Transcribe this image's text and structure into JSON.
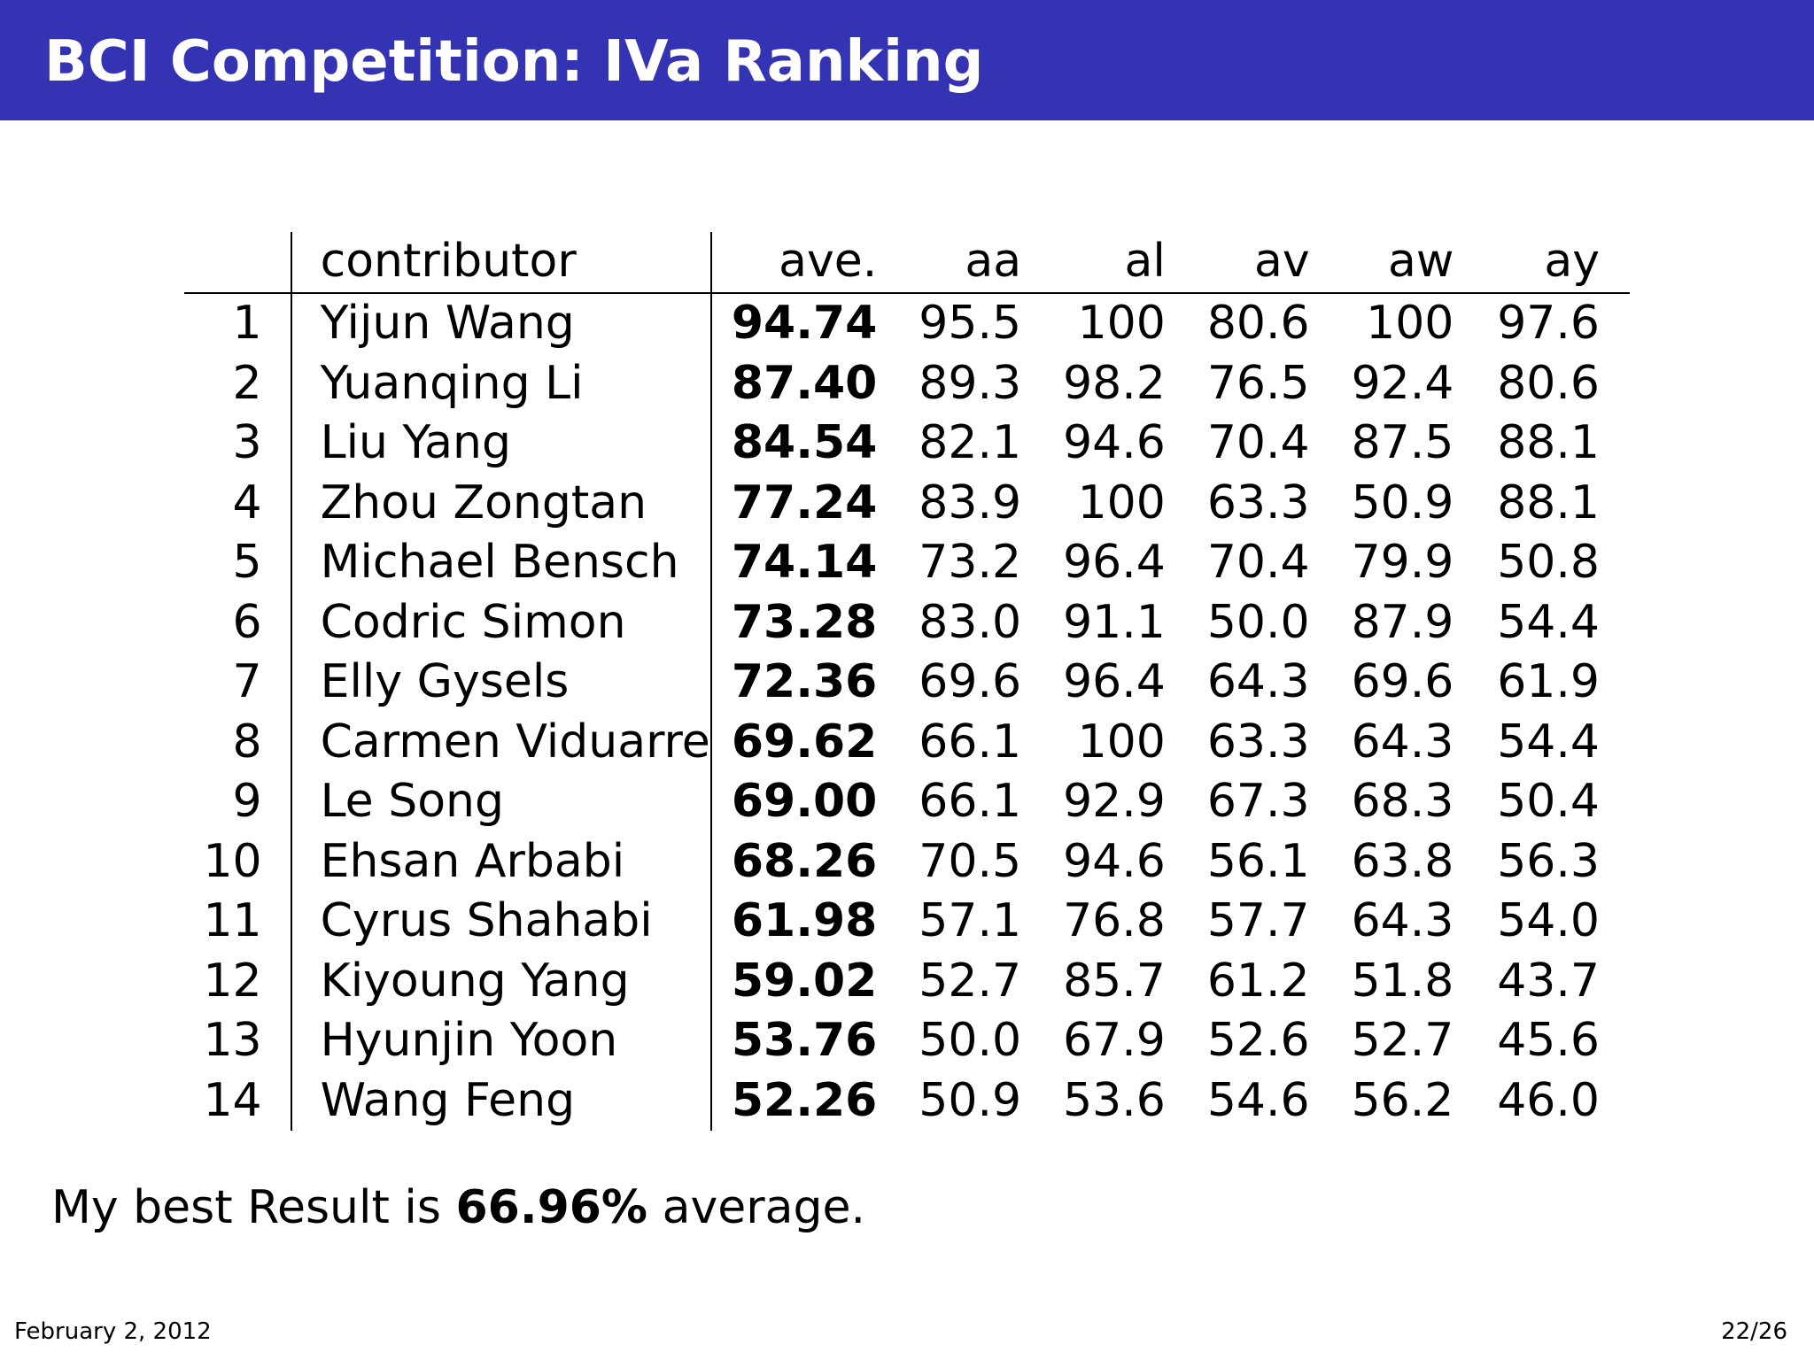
{
  "slide": {
    "title": "BCI Competition: IVa Ranking",
    "summary_prefix": "My best Result is ",
    "summary_value": "66.96%",
    "summary_suffix": " average.",
    "date": "February 2, 2012",
    "page": "22/26"
  },
  "table": {
    "headers": [
      "",
      "contributor",
      "ave.",
      "aa",
      "al",
      "av",
      "aw",
      "ay"
    ],
    "rows": [
      [
        "1",
        "Yijun Wang",
        "94.74",
        "95.5",
        "100",
        "80.6",
        "100",
        "97.6"
      ],
      [
        "2",
        "Yuanqing Li",
        "87.40",
        "89.3",
        "98.2",
        "76.5",
        "92.4",
        "80.6"
      ],
      [
        "3",
        "Liu Yang",
        "84.54",
        "82.1",
        "94.6",
        "70.4",
        "87.5",
        "88.1"
      ],
      [
        "4",
        "Zhou Zongtan",
        "77.24",
        "83.9",
        "100",
        "63.3",
        "50.9",
        "88.1"
      ],
      [
        "5",
        "Michael Bensch",
        "74.14",
        "73.2",
        "96.4",
        "70.4",
        "79.9",
        "50.8"
      ],
      [
        "6",
        "Codric Simon",
        "73.28",
        "83.0",
        "91.1",
        "50.0",
        "87.9",
        "54.4"
      ],
      [
        "7",
        "Elly Gysels",
        "72.36",
        "69.6",
        "96.4",
        "64.3",
        "69.6",
        "61.9"
      ],
      [
        "8",
        "Carmen Viduarre",
        "69.62",
        "66.1",
        "100",
        "63.3",
        "64.3",
        "54.4"
      ],
      [
        "9",
        "Le Song",
        "69.00",
        "66.1",
        "92.9",
        "67.3",
        "68.3",
        "50.4"
      ],
      [
        "10",
        "Ehsan Arbabi",
        "68.26",
        "70.5",
        "94.6",
        "56.1",
        "63.8",
        "56.3"
      ],
      [
        "11",
        "Cyrus Shahabi",
        "61.98",
        "57.1",
        "76.8",
        "57.7",
        "64.3",
        "54.0"
      ],
      [
        "12",
        "Kiyoung Yang",
        "59.02",
        "52.7",
        "85.7",
        "61.2",
        "51.8",
        "43.7"
      ],
      [
        "13",
        "Hyunjin Yoon",
        "53.76",
        "50.0",
        "67.9",
        "52.6",
        "52.7",
        "45.6"
      ],
      [
        "14",
        "Wang Feng",
        "52.26",
        "50.9",
        "53.6",
        "54.6",
        "56.2",
        "46.0"
      ]
    ]
  },
  "colors": {
    "title_bar": "#3333b3",
    "title_text": "#ffffff"
  }
}
